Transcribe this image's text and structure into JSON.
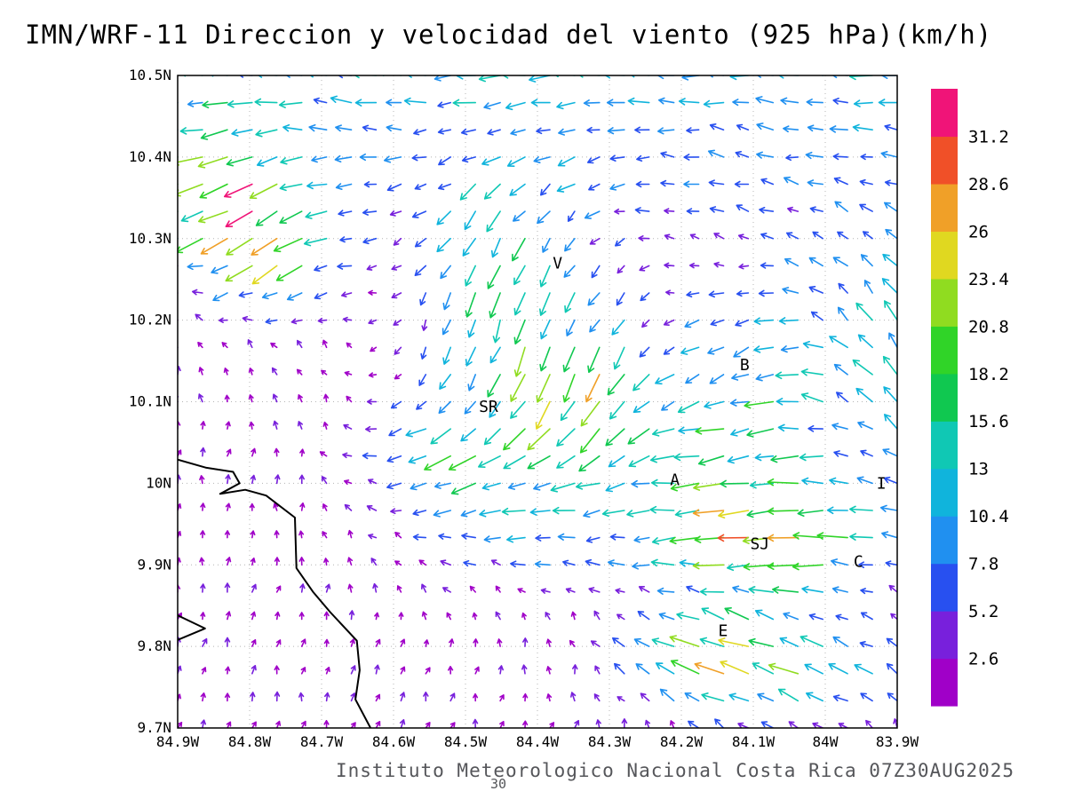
{
  "chart_data": {
    "type": "vector_field",
    "title": "IMN/WRF-11 Direccion y velocidad del viento (925 hPa)(km/h)",
    "footer": "Instituto Meteorologico Nacional Costa Rica 07Z30AUG2025",
    "footnote": "30",
    "units": "km/h",
    "level": "925 hPa",
    "lon_range_w": [
      84.9,
      83.9
    ],
    "lat_range": [
      9.7,
      10.5
    ],
    "grid_step_deg": 0.1,
    "x_tick_labels": [
      "84.9W",
      "84.8W",
      "84.7W",
      "84.6W",
      "84.5W",
      "84.4W",
      "84.3W",
      "84.2W",
      "84.1W",
      "84W",
      "83.9W"
    ],
    "y_tick_labels": [
      "10.5N",
      "10.4N",
      "10.3N",
      "10.2N",
      "10.1N",
      "10N",
      "9.9N",
      "9.8N",
      "9.7N"
    ],
    "colorbar": {
      "levels": [
        2.6,
        5.2,
        7.8,
        10.4,
        13,
        15.6,
        18.2,
        20.8,
        23.4,
        26,
        28.6,
        31.2
      ],
      "colors": [
        "#a000c8",
        "#7820dc",
        "#2850f0",
        "#2090f0",
        "#10b4dc",
        "#10c8b4",
        "#10c850",
        "#30d428",
        "#90dc20",
        "#e0d820",
        "#f0a028",
        "#f05028",
        "#f01478"
      ]
    },
    "stations": [
      {
        "label": "V",
        "lonW": 84.372,
        "lat": 10.27
      },
      {
        "label": "B",
        "lonW": 84.112,
        "lat": 10.145
      },
      {
        "label": "SR",
        "lonW": 84.468,
        "lat": 10.094
      },
      {
        "label": "A",
        "lonW": 84.209,
        "lat": 10.004
      },
      {
        "label": "SJ",
        "lonW": 84.091,
        "lat": 9.926
      },
      {
        "label": "C",
        "lonW": 83.954,
        "lat": 9.904
      },
      {
        "label": "E",
        "lonW": 84.142,
        "lat": 9.819
      },
      {
        "label": "I",
        "lonW": 83.922,
        "lat": 10.0
      }
    ],
    "coastline": [
      [
        [
          84.9,
          10.029
        ],
        [
          84.86,
          10.019
        ],
        [
          84.823,
          10.014
        ],
        [
          84.814,
          10.0
        ],
        [
          84.841,
          9.987
        ],
        [
          84.806,
          9.992
        ],
        [
          84.777,
          9.985
        ],
        [
          84.737,
          9.958
        ],
        [
          84.735,
          9.896
        ],
        [
          84.712,
          9.867
        ],
        [
          84.688,
          9.842
        ],
        [
          84.651,
          9.807
        ],
        [
          84.647,
          9.771
        ],
        [
          84.653,
          9.735
        ],
        [
          84.632,
          9.7
        ]
      ],
      [
        [
          84.9,
          9.838
        ],
        [
          84.862,
          9.822
        ],
        [
          84.9,
          9.808
        ]
      ]
    ],
    "wind_grid": {
      "nx": 30,
      "ny": 25
    },
    "wind_model": {
      "base": {
        "u": 0.6,
        "v": 2.4
      },
      "jets": [
        {
          "lonW": 84.4,
          "lat": 10.62,
          "rlon": 5.0,
          "rlat": 0.22,
          "u": -13,
          "v": -2
        },
        {
          "lonW": 84.83,
          "lat": 10.36,
          "rlon": 0.07,
          "rlat": 0.055,
          "u": -15,
          "v": -9
        },
        {
          "lonW": 84.77,
          "lat": 10.29,
          "rlon": 0.06,
          "rlat": 0.05,
          "u": -12,
          "v": -11
        },
        {
          "lonW": 84.44,
          "lat": 10.23,
          "rlon": 0.1,
          "rlat": 0.13,
          "u": -3,
          "v": -15
        },
        {
          "lonW": 84.33,
          "lat": 10.12,
          "rlon": 0.07,
          "rlat": 0.06,
          "u": -6,
          "v": -15
        },
        {
          "lonW": 84.12,
          "lat": 10.03,
          "rlon": 0.15,
          "rlat": 0.08,
          "u": -12,
          "v": -4
        },
        {
          "lonW": 84.06,
          "lat": 9.93,
          "rlon": 0.1,
          "rlat": 0.05,
          "u": -18,
          "v": -2
        },
        {
          "lonW": 84.14,
          "lat": 9.785,
          "rlon": 0.09,
          "rlat": 0.045,
          "u": -13,
          "v": 3
        },
        {
          "lonW": 83.92,
          "lat": 10.16,
          "rlon": 0.09,
          "rlat": 0.1,
          "u": -5,
          "v": 8
        },
        {
          "lonW": 84.09,
          "lat": 10.16,
          "rlon": 0.07,
          "rlat": 0.06,
          "u": -8,
          "v": -7
        },
        {
          "lonW": 84.38,
          "lat": 9.95,
          "rlon": 0.16,
          "rlat": 0.06,
          "u": -8,
          "v": -1
        },
        {
          "lonW": 84.5,
          "lat": 10.04,
          "rlon": 0.09,
          "rlat": 0.05,
          "u": -11,
          "v": -4
        },
        {
          "lonW": 84.03,
          "lat": 9.77,
          "rlon": 0.12,
          "rlat": 0.05,
          "u": -11,
          "v": 2
        }
      ],
      "noise": {
        "seed": 7,
        "dir": 0.55,
        "mag": 0.35
      }
    },
    "arrow_style": {
      "scale": 1.45,
      "min_len": 5,
      "max_len": 34,
      "head": 7,
      "width": 1.6
    }
  }
}
